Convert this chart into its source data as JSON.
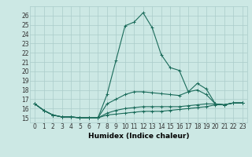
{
  "title": "",
  "xlabel": "Humidex (Indice chaleur)",
  "ylabel": "",
  "bg_color": "#cce8e4",
  "grid_color": "#aaccca",
  "line_color": "#1a6b5a",
  "x_values": [
    0,
    1,
    2,
    3,
    4,
    5,
    6,
    7,
    8,
    9,
    10,
    11,
    12,
    13,
    14,
    15,
    16,
    17,
    18,
    19,
    20,
    21,
    22,
    23
  ],
  "series": [
    [
      16.5,
      15.8,
      15.3,
      15.1,
      15.1,
      15.0,
      15.0,
      15.0,
      17.5,
      21.2,
      24.9,
      25.3,
      26.3,
      24.7,
      21.8,
      20.4,
      20.1,
      17.8,
      18.7,
      18.1,
      16.5,
      16.4,
      16.6,
      16.6
    ],
    [
      16.5,
      15.8,
      15.3,
      15.1,
      15.1,
      15.0,
      15.0,
      15.0,
      16.5,
      17.0,
      17.5,
      17.8,
      17.8,
      17.7,
      17.6,
      17.5,
      17.4,
      17.8,
      18.0,
      17.5,
      16.5,
      16.4,
      16.6,
      16.6
    ],
    [
      16.5,
      15.8,
      15.3,
      15.1,
      15.1,
      15.0,
      15.0,
      15.0,
      15.5,
      15.8,
      16.0,
      16.1,
      16.2,
      16.2,
      16.2,
      16.2,
      16.2,
      16.3,
      16.4,
      16.5,
      16.5,
      16.4,
      16.6,
      16.6
    ],
    [
      16.5,
      15.8,
      15.3,
      15.1,
      15.1,
      15.0,
      15.0,
      15.0,
      15.3,
      15.4,
      15.5,
      15.6,
      15.7,
      15.7,
      15.7,
      15.8,
      15.9,
      16.0,
      16.1,
      16.2,
      16.4,
      16.4,
      16.6,
      16.6
    ]
  ],
  "ylim": [
    14.5,
    27
  ],
  "xlim": [
    -0.5,
    23.5
  ],
  "yticks": [
    15,
    16,
    17,
    18,
    19,
    20,
    21,
    22,
    23,
    24,
    25,
    26
  ],
  "xticks": [
    0,
    1,
    2,
    3,
    4,
    5,
    6,
    7,
    8,
    9,
    10,
    11,
    12,
    13,
    14,
    15,
    16,
    17,
    18,
    19,
    20,
    21,
    22,
    23
  ],
  "marker": "+",
  "marker_size": 3,
  "line_width": 0.8,
  "font_size": 5.5,
  "xlabel_font_size": 6.5
}
